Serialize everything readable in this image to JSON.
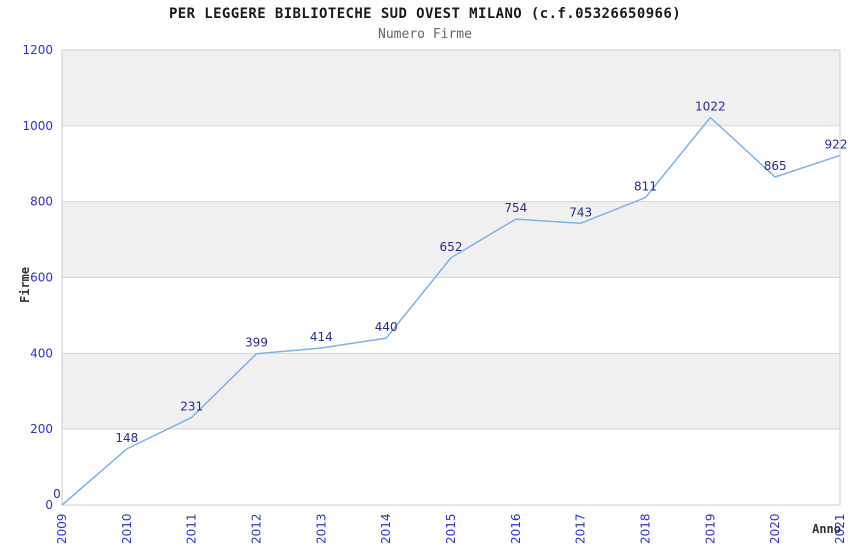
{
  "header": {
    "title": "PER LEGGERE BIBLIOTECHE SUD OVEST MILANO (c.f.05326650966)",
    "subtitle": "Numero Firme"
  },
  "chart_data": {
    "type": "line",
    "title": "PER LEGGERE BIBLIOTECHE SUD OVEST MILANO (c.f.05326650966)",
    "subtitle": "Numero Firme",
    "xlabel": "Anno",
    "ylabel": "Firme",
    "categories": [
      "2009",
      "2010",
      "2011",
      "2012",
      "2013",
      "2014",
      "2015",
      "2016",
      "2017",
      "2018",
      "2019",
      "2020",
      "2021"
    ],
    "values": [
      0,
      148,
      231,
      399,
      414,
      440,
      652,
      754,
      743,
      811,
      1022,
      865,
      922
    ],
    "ylim": [
      0,
      1200
    ],
    "ytick_interval": 200,
    "yticks": [
      0,
      200,
      400,
      600,
      800,
      1000,
      1200
    ],
    "grid": true,
    "legend": "none",
    "band_fill": "alternating-horizontal",
    "data_labels_visible": true,
    "colors": {
      "line": "#7FB2E8",
      "tick_label": "#3030D0",
      "data_label": "#2B2B8F",
      "band": "#F0F0F0",
      "grid": "#D6D6D6",
      "border": "#CCCCCC",
      "title": "#1A1A1A",
      "subtitle": "#666666",
      "axis_title": "#333333",
      "background": "#FFFFFF"
    }
  }
}
